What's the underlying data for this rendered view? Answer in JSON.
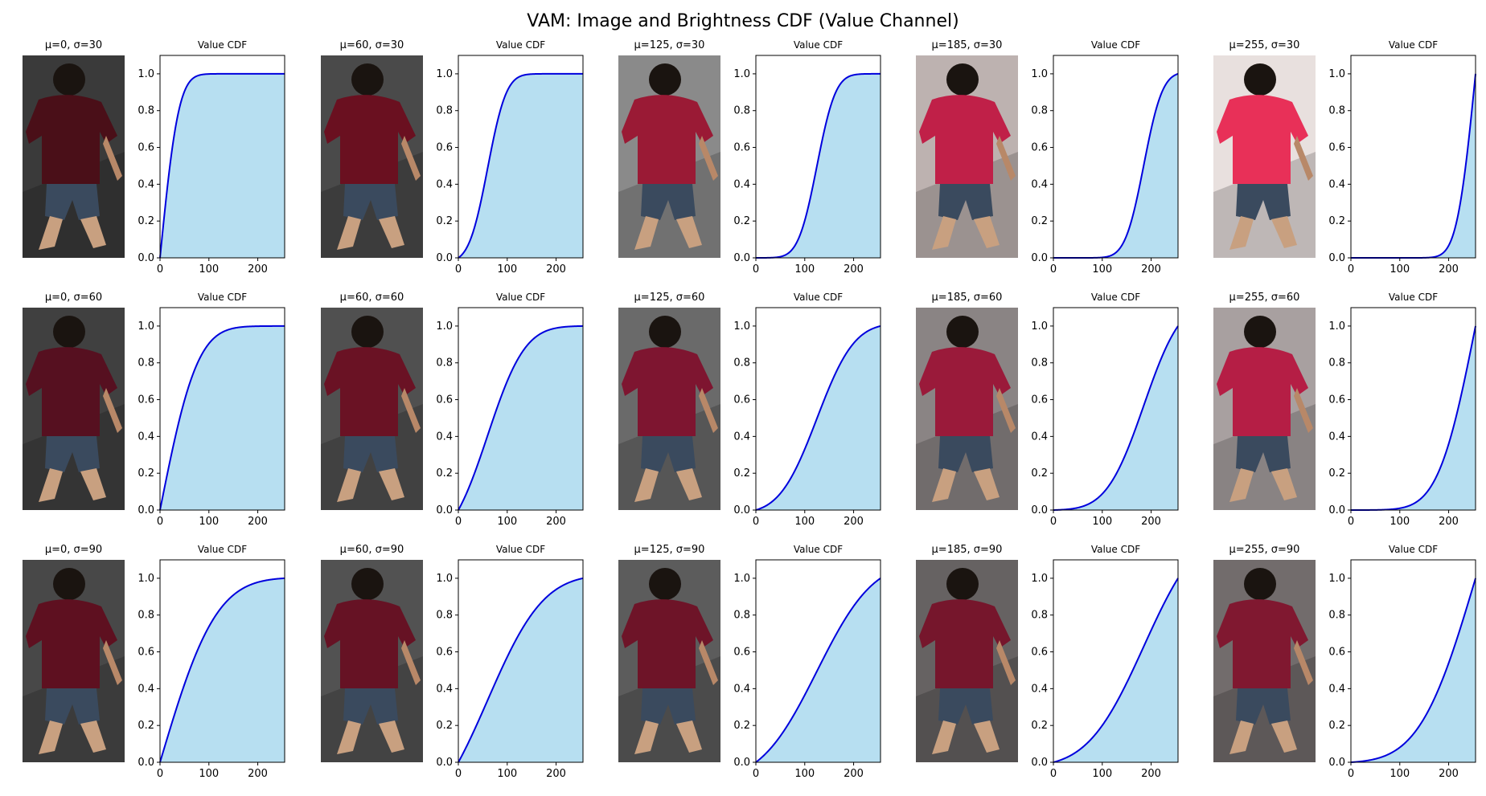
{
  "suptitle": "VAM: Image and Brightness CDF (Value Channel)",
  "colors": {
    "line": "#0000dd",
    "fill": "#b7dff1",
    "axis": "#000000"
  },
  "chart_data": {
    "type": "area",
    "rows": 3,
    "cols": 5,
    "xticks": [
      0,
      100,
      200
    ],
    "yticks": [
      0.0,
      0.2,
      0.4,
      0.6,
      0.8,
      1.0
    ],
    "xlim": [
      0,
      255
    ],
    "ylim": [
      0,
      1.1
    ],
    "panels": [
      {
        "image_title": "μ=0, σ=30",
        "title": "Value CDF",
        "mu": 0,
        "sigma": 30,
        "image": {
          "shirt": "#4a0f18",
          "bg": "#3a3a3a"
        }
      },
      {
        "image_title": "μ=60, σ=30",
        "title": "Value CDF",
        "mu": 60,
        "sigma": 30,
        "image": {
          "shirt": "#6a1020",
          "bg": "#4a4a4a"
        }
      },
      {
        "image_title": "μ=125, σ=30",
        "title": "Value CDF",
        "mu": 125,
        "sigma": 30,
        "image": {
          "shirt": "#9a1a35",
          "bg": "#8a8a8a"
        }
      },
      {
        "image_title": "μ=185, σ=30",
        "title": "Value CDF",
        "mu": 185,
        "sigma": 30,
        "image": {
          "shirt": "#c02048",
          "bg": "#bdb2b0"
        }
      },
      {
        "image_title": "μ=255, σ=30",
        "title": "Value CDF",
        "mu": 255,
        "sigma": 30,
        "image": {
          "shirt": "#e83058",
          "bg": "#e8e0de"
        }
      },
      {
        "image_title": "μ=0, σ=60",
        "title": "Value CDF",
        "mu": 0,
        "sigma": 60,
        "image": {
          "shirt": "#561020",
          "bg": "#404040"
        }
      },
      {
        "image_title": "μ=60, σ=60",
        "title": "Value CDF",
        "mu": 60,
        "sigma": 60,
        "image": {
          "shirt": "#6a1224",
          "bg": "#505050"
        }
      },
      {
        "image_title": "μ=125, σ=60",
        "title": "Value CDF",
        "mu": 125,
        "sigma": 60,
        "image": {
          "shirt": "#7e1530",
          "bg": "#6a6a6a"
        }
      },
      {
        "image_title": "μ=185, σ=60",
        "title": "Value CDF",
        "mu": 185,
        "sigma": 60,
        "image": {
          "shirt": "#9a1a3a",
          "bg": "#8a8484"
        }
      },
      {
        "image_title": "μ=255, σ=60",
        "title": "Value CDF",
        "mu": 255,
        "sigma": 60,
        "image": {
          "shirt": "#b51e45",
          "bg": "#a8a0a0"
        }
      },
      {
        "image_title": "μ=0, σ=90",
        "title": "Value CDF",
        "mu": 0,
        "sigma": 90,
        "image": {
          "shirt": "#5e1020",
          "bg": "#484848"
        }
      },
      {
        "image_title": "μ=60, σ=90",
        "title": "Value CDF",
        "mu": 60,
        "sigma": 90,
        "image": {
          "shirt": "#661224",
          "bg": "#525252"
        }
      },
      {
        "image_title": "μ=125, σ=90",
        "title": "Value CDF",
        "mu": 125,
        "sigma": 90,
        "image": {
          "shirt": "#6e1428",
          "bg": "#5c5c5c"
        }
      },
      {
        "image_title": "μ=185, σ=90",
        "title": "Value CDF",
        "mu": 185,
        "sigma": 90,
        "image": {
          "shirt": "#76162c",
          "bg": "#666262"
        }
      },
      {
        "image_title": "μ=255, σ=90",
        "title": "Value CDF",
        "mu": 255,
        "sigma": 90,
        "image": {
          "shirt": "#801830",
          "bg": "#726c6c"
        }
      }
    ]
  }
}
